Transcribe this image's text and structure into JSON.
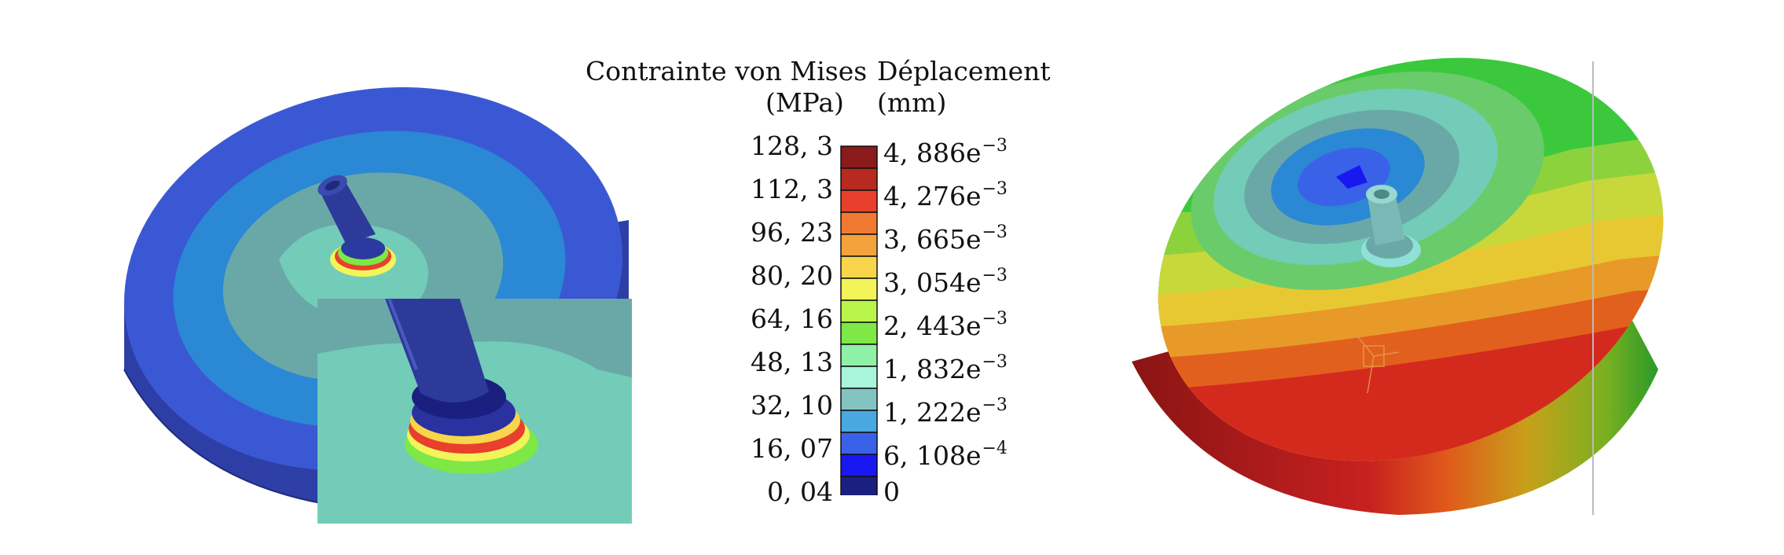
{
  "legend": {
    "stress": {
      "title": "Contrainte von Mises",
      "unit": "(MPa)",
      "labels": [
        "128, 3",
        "112, 3",
        "96, 23",
        "80, 20",
        "64, 16",
        "48, 13",
        "32, 10",
        "16, 07",
        "0, 04"
      ]
    },
    "displacement": {
      "title": "Déplacement",
      "unit": "(mm)",
      "labels": [
        {
          "mantissa": "4, 886e",
          "exp": "−3"
        },
        {
          "mantissa": "4, 276e",
          "exp": "−3"
        },
        {
          "mantissa": "3, 665e",
          "exp": "−3"
        },
        {
          "mantissa": "3, 054e",
          "exp": "−3"
        },
        {
          "mantissa": "2, 443e",
          "exp": "−3"
        },
        {
          "mantissa": "1, 832e",
          "exp": "−3"
        },
        {
          "mantissa": "1, 222e",
          "exp": "−3"
        },
        {
          "mantissa": "6, 108e",
          "exp": "−4"
        },
        {
          "mantissa": "0",
          "exp": ""
        }
      ]
    },
    "colors": [
      "#8b1a1a",
      "#b8291f",
      "#e8402c",
      "#f07a32",
      "#f3a23c",
      "#f8d54a",
      "#f2f45a",
      "#b9f54a",
      "#7de846",
      "#8ff0a8",
      "#a8f5dc",
      "#84c4c0",
      "#4aa8e0",
      "#3a62e8",
      "#1a18f0",
      "#1a1f80"
    ]
  },
  "colors": {
    "stress_disc_outer": "#3a55d0",
    "stress_disc_side": "#2a3aa0",
    "stress_ring2": "#2b88d4",
    "stress_ring3": "#6aa8a8",
    "stress_inner": "#72ccb8",
    "disp_green": "#3cc83c"
  }
}
